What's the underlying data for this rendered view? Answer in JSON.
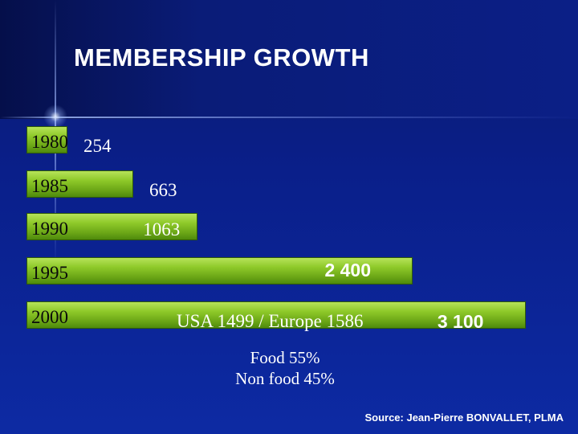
{
  "chart_data": {
    "type": "bar",
    "orientation": "horizontal",
    "title": "MEMBERSHIP GROWTH",
    "categories": [
      "1980",
      "1985",
      "1990",
      "1995",
      "2000"
    ],
    "values": [
      254,
      663,
      1063,
      2400,
      3100
    ],
    "value_labels": [
      "254",
      "663",
      "1063",
      "2 400",
      "3 100"
    ],
    "xlim": [
      0,
      3300
    ],
    "grid": false,
    "legend": "none",
    "bar_color": "#8fca2a",
    "annotations": {
      "split_2000": "USA 1499 / Europe 1586",
      "food": "Food 55%",
      "non_food": "Non food 45%"
    },
    "source": "Source: Jean-Pierre BONVALLET, PLMA"
  },
  "colors": {
    "background": "#0a1f8a",
    "bar": "#8fca2a",
    "year_text": "#0a0a0a"
  }
}
